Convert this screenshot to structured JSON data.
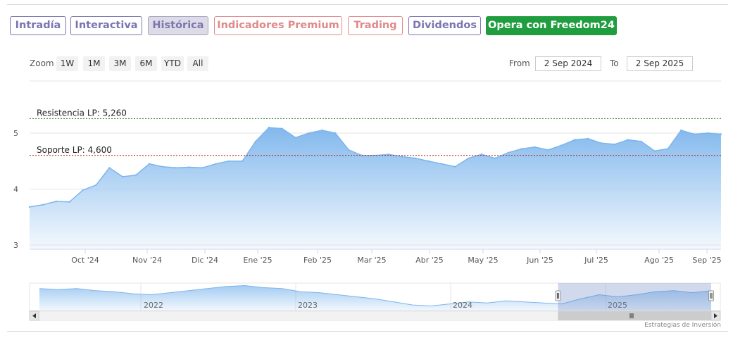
{
  "tabs": [
    {
      "label": "Intradía",
      "style": "purple"
    },
    {
      "label": "Interactiva",
      "style": "purple"
    },
    {
      "label": "Histórica",
      "style": "active"
    },
    {
      "label": "Indicadores Premium",
      "style": "red"
    },
    {
      "label": "Trading",
      "style": "red"
    },
    {
      "label": "Dividendos",
      "style": "purple"
    },
    {
      "label": "Opera con Freedom24",
      "style": "green"
    }
  ],
  "range_selector": {
    "zoom_label": "Zoom",
    "buttons": [
      "1W",
      "1M",
      "3M",
      "6M",
      "YTD",
      "All"
    ],
    "from_label": "From",
    "from_value": "2 Sep 2024",
    "to_label": "To",
    "to_value": "2 Sep 2025"
  },
  "chart_data": {
    "type": "area",
    "title": "",
    "xlabel": "",
    "ylabel": "",
    "ylim": [
      3,
      5.5
    ],
    "y_ticks": [
      "3",
      "4",
      "5"
    ],
    "x_ticks": [
      "Oct '24",
      "Nov '24",
      "Dic '24",
      "Ene '25",
      "Feb '25",
      "Mar '25",
      "Abr '25",
      "May '25",
      "Jun '25",
      "Jul '25",
      "Ago '25",
      "Sep '25"
    ],
    "grid": true,
    "legend": "none",
    "colors": {
      "line": "#7cb5ec",
      "fill": "#7cb5ec",
      "resistance": "#2f7d32",
      "support": "#b22222"
    },
    "series": [
      {
        "x": [
          "2024-09-02",
          "2024-09-09",
          "2024-09-16",
          "2024-09-23",
          "2024-09-30",
          "2024-10-07",
          "2024-10-14",
          "2024-10-21",
          "2024-10-28",
          "2024-11-04",
          "2024-11-11",
          "2024-11-18",
          "2024-11-25",
          "2024-12-02",
          "2024-12-09",
          "2024-12-16",
          "2024-12-23",
          "2024-12-30",
          "2025-01-06",
          "2025-01-13",
          "2025-01-20",
          "2025-01-27",
          "2025-02-03",
          "2025-02-10",
          "2025-02-17",
          "2025-02-24",
          "2025-03-03",
          "2025-03-10",
          "2025-03-17",
          "2025-03-24",
          "2025-03-31",
          "2025-04-07",
          "2025-04-14",
          "2025-04-21",
          "2025-04-28",
          "2025-05-05",
          "2025-05-12",
          "2025-05-19",
          "2025-05-26",
          "2025-06-02",
          "2025-06-09",
          "2025-06-16",
          "2025-06-23",
          "2025-06-30",
          "2025-07-07",
          "2025-07-14",
          "2025-07-21",
          "2025-07-28",
          "2025-08-04",
          "2025-08-11",
          "2025-08-18",
          "2025-08-25",
          "2025-09-01"
        ],
        "values": [
          3.68,
          3.72,
          3.78,
          3.77,
          3.98,
          4.07,
          4.38,
          4.22,
          4.25,
          4.45,
          4.4,
          4.38,
          4.39,
          4.38,
          4.45,
          4.5,
          4.5,
          4.85,
          5.1,
          5.08,
          4.92,
          5.0,
          5.05,
          5.0,
          4.7,
          4.6,
          4.6,
          4.62,
          4.58,
          4.55,
          4.5,
          4.45,
          4.4,
          4.55,
          4.62,
          4.55,
          4.65,
          4.72,
          4.75,
          4.7,
          4.78,
          4.88,
          4.9,
          4.82,
          4.8,
          4.88,
          4.85,
          4.68,
          4.72,
          5.05,
          4.98,
          5.0,
          4.98
        ]
      }
    ],
    "plot_lines": [
      {
        "label": "Resistencia LP: 5,260",
        "value": 5.26
      },
      {
        "label": "Soporte LP: 4,600",
        "value": 4.6
      }
    ],
    "navigator": {
      "year_labels": [
        "2022",
        "2023",
        "2024",
        "2025"
      ],
      "values": [
        5.2,
        5.1,
        5.2,
        5.0,
        4.9,
        4.7,
        4.6,
        4.8,
        5.0,
        5.2,
        5.4,
        5.5,
        5.3,
        5.2,
        4.9,
        4.8,
        4.6,
        4.4,
        4.2,
        3.9,
        3.6,
        3.5,
        3.7,
        3.9,
        3.8,
        4.0,
        3.9,
        3.8,
        3.7,
        4.2,
        4.6,
        4.4,
        4.6,
        4.9,
        5.0,
        4.8,
        5.0
      ],
      "selection_start_fraction": 0.765
    },
    "credits": "Estrategias de Inversión"
  }
}
